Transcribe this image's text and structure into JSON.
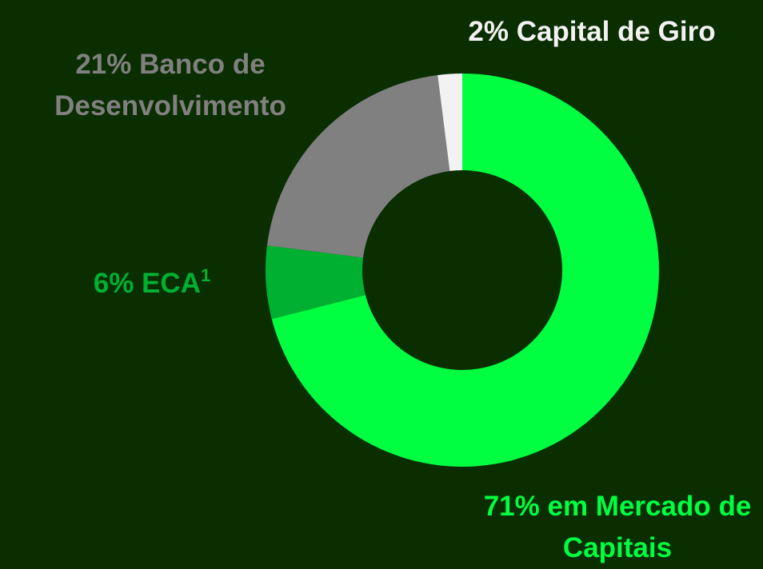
{
  "chart_data": {
    "type": "donut",
    "categories": [
      "em Mercado de Capitais",
      "ECA",
      "Banco de Desenvolvimento",
      "Capital de Giro"
    ],
    "category_superscripts": [
      null,
      "1",
      null,
      null
    ],
    "values": [
      71,
      6,
      21,
      2
    ],
    "value_labels": [
      "71%",
      "6%",
      "21%",
      "2%"
    ],
    "colors": [
      "#00ff40",
      "#00b030",
      "#808080",
      "#f2f2f2"
    ]
  }
}
